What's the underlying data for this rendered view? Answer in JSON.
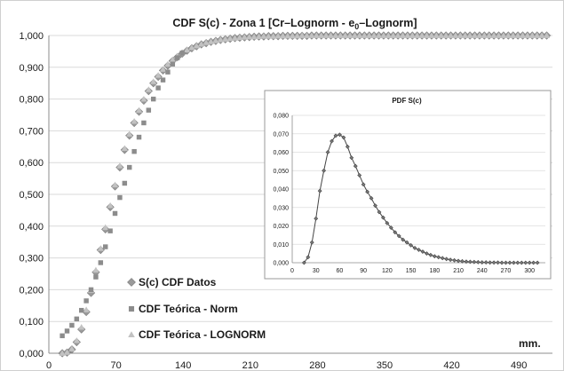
{
  "chart_data": [
    {
      "type": "scatter",
      "title": "CDF   S(c)   -   Zona 1    [Cr–Lognorm  -  e",
      "title_subscript": "0",
      "title_end": "–Lognorm]",
      "xlabel": "mm.",
      "ylabel": "",
      "xlim": [
        0,
        525
      ],
      "ylim": [
        0,
        1
      ],
      "x_ticks": [
        0,
        70,
        140,
        210,
        280,
        350,
        420,
        490
      ],
      "x_tick_labels": [
        "0",
        "70",
        "140",
        "210",
        "280",
        "350",
        "420",
        "490"
      ],
      "y_ticks": [
        0,
        0.1,
        0.2,
        0.3,
        0.4,
        0.5,
        0.6,
        0.7,
        0.8,
        0.9,
        1.0
      ],
      "y_tick_labels": [
        "0,000",
        "0,100",
        "0,200",
        "0,300",
        "0,400",
        "0,500",
        "0,600",
        "0,700",
        "0,800",
        "0,900",
        "1,000"
      ],
      "grid": true,
      "legend_position": "bottom-left",
      "series": [
        {
          "name": "S(c) CDF Datos",
          "marker": "diamond",
          "color": "#9a9a9a",
          "x": [
            14,
            19,
            24,
            29,
            34,
            39,
            44,
            49,
            54,
            59,
            64,
            69,
            74,
            79,
            84,
            89,
            94,
            99,
            104,
            109,
            114,
            119,
            124,
            129,
            134,
            139,
            144,
            149,
            154,
            159,
            164,
            169,
            174,
            179,
            184,
            189,
            194,
            199,
            204,
            209,
            214,
            219,
            224,
            229,
            234,
            239,
            244,
            249,
            254,
            259,
            264,
            269,
            274,
            279,
            284,
            289,
            294,
            299,
            304,
            309,
            314,
            319,
            324,
            329,
            334,
            339,
            344,
            349,
            354,
            359,
            364,
            369,
            374,
            379,
            384,
            389,
            394,
            399,
            404,
            409,
            414,
            419,
            424,
            429,
            434,
            439,
            444,
            449,
            454,
            459,
            464,
            469,
            474,
            479,
            484,
            489,
            494,
            499,
            504,
            509,
            514,
            519
          ],
          "y": [
            0.0,
            0.002,
            0.012,
            0.035,
            0.075,
            0.13,
            0.19,
            0.255,
            0.325,
            0.39,
            0.46,
            0.525,
            0.585,
            0.64,
            0.685,
            0.725,
            0.76,
            0.795,
            0.825,
            0.85,
            0.87,
            0.89,
            0.905,
            0.92,
            0.932,
            0.943,
            0.952,
            0.96,
            0.966,
            0.972,
            0.976,
            0.98,
            0.983,
            0.986,
            0.988,
            0.99,
            0.992,
            0.993,
            0.994,
            0.995,
            0.996,
            0.997,
            0.997,
            0.998,
            0.998,
            0.998,
            0.999,
            0.999,
            0.999,
            0.999,
            0.999,
            0.999,
            1.0,
            1.0,
            1.0,
            1.0,
            1.0,
            1.0,
            1.0,
            1.0,
            1.0,
            1.0,
            1.0,
            1.0,
            1.0,
            1.0,
            1.0,
            1.0,
            1.0,
            1.0,
            1.0,
            1.0,
            1.0,
            1.0,
            1.0,
            1.0,
            1.0,
            1.0,
            1.0,
            1.0,
            1.0,
            1.0,
            1.0,
            1.0,
            1.0,
            1.0,
            1.0,
            1.0,
            1.0,
            1.0,
            1.0,
            1.0,
            1.0,
            1.0,
            1.0,
            1.0,
            1.0,
            1.0,
            1.0,
            1.0,
            1.0,
            1.0
          ]
        },
        {
          "name": "CDF Teórica - Norm",
          "marker": "square",
          "color": "#8c8c8c",
          "x": [
            14,
            19,
            24,
            29,
            34,
            39,
            44,
            49,
            54,
            59,
            64,
            69,
            74,
            79,
            84,
            89,
            94,
            99,
            104,
            109,
            114,
            119,
            124,
            129,
            134,
            139
          ],
          "y": [
            0.055,
            0.07,
            0.088,
            0.108,
            0.135,
            0.165,
            0.2,
            0.24,
            0.285,
            0.335,
            0.385,
            0.44,
            0.49,
            0.535,
            0.585,
            0.635,
            0.68,
            0.725,
            0.765,
            0.8,
            0.835,
            0.86,
            0.885,
            0.91,
            0.93,
            0.945
          ]
        },
        {
          "name": "CDF Teórica - LOGNORM",
          "marker": "triangle",
          "color": "#c2c2c2",
          "x": [
            14,
            19,
            24,
            29,
            34,
            39,
            44,
            49,
            54,
            59,
            64,
            69,
            74,
            79,
            84,
            89,
            94,
            99,
            104,
            109,
            114,
            119,
            124,
            129,
            134,
            139,
            144,
            149,
            154,
            159,
            164,
            169,
            174,
            179,
            184,
            189,
            194,
            199,
            204,
            209,
            214,
            219,
            224,
            229,
            234,
            239,
            244,
            249,
            254,
            259,
            264,
            269,
            274,
            279,
            284,
            289,
            294,
            299,
            304,
            309,
            314,
            319,
            324,
            329,
            334,
            339,
            344,
            349,
            354,
            359,
            364,
            369,
            374,
            379,
            384,
            389,
            394,
            399,
            404,
            409,
            414,
            419,
            424,
            429,
            434,
            439,
            444,
            449,
            454,
            459,
            464,
            469,
            474,
            479,
            484,
            489,
            494,
            499,
            504,
            509,
            514,
            519
          ],
          "y": [
            0.0,
            0.003,
            0.014,
            0.04,
            0.082,
            0.137,
            0.198,
            0.262,
            0.33,
            0.396,
            0.465,
            0.53,
            0.59,
            0.645,
            0.69,
            0.73,
            0.765,
            0.8,
            0.83,
            0.855,
            0.875,
            0.894,
            0.91,
            0.924,
            0.936,
            0.946,
            0.955,
            0.962,
            0.968,
            0.973,
            0.978,
            0.981,
            0.984,
            0.987,
            0.989,
            0.991,
            0.992,
            0.994,
            0.995,
            0.996,
            0.996,
            0.997,
            0.998,
            0.998,
            0.998,
            0.999,
            0.999,
            0.999,
            0.999,
            0.999,
            1.0,
            1.0,
            1.0,
            1.0,
            1.0,
            1.0,
            1.0,
            1.0,
            1.0,
            1.0,
            1.0,
            1.0,
            1.0,
            1.0,
            1.0,
            1.0,
            1.0,
            1.0,
            1.0,
            1.0,
            1.0,
            1.0,
            1.0,
            1.0,
            1.0,
            1.0,
            1.0,
            1.0,
            1.0,
            1.0,
            1.0,
            1.0,
            1.0,
            1.0,
            1.0,
            1.0,
            1.0,
            1.0,
            1.0,
            1.0,
            1.0,
            1.0,
            1.0,
            1.0,
            1.0,
            1.0,
            1.0,
            1.0,
            1.0,
            1.0,
            1.0,
            1.0
          ]
        }
      ]
    },
    {
      "type": "line",
      "title": "PDF    S(c)",
      "xlabel": "",
      "ylabel": "",
      "xlim": [
        0,
        320
      ],
      "ylim": [
        0,
        0.08
      ],
      "x_ticks": [
        0,
        30,
        60,
        90,
        120,
        150,
        180,
        210,
        240,
        270,
        300
      ],
      "x_tick_labels": [
        "0",
        "30",
        "60",
        "90",
        "120",
        "150",
        "180",
        "210",
        "240",
        "270",
        "300"
      ],
      "y_ticks": [
        0,
        0.01,
        0.02,
        0.03,
        0.04,
        0.05,
        0.06,
        0.07,
        0.08
      ],
      "y_tick_labels": [
        "0,000",
        "0,010",
        "0,020",
        "0,030",
        "0,040",
        "0,050",
        "0,060",
        "0,070",
        "0,080"
      ],
      "grid": true,
      "series": [
        {
          "marker": "diamond",
          "color": "#444444",
          "x": [
            15,
            20,
            25,
            30,
            35,
            40,
            45,
            50,
            55,
            60,
            65,
            70,
            75,
            80,
            85,
            90,
            95,
            100,
            105,
            110,
            115,
            120,
            125,
            130,
            135,
            140,
            145,
            150,
            155,
            160,
            165,
            170,
            175,
            180,
            185,
            190,
            195,
            200,
            205,
            210,
            215,
            220,
            225,
            230,
            235,
            240,
            245,
            250,
            255,
            260,
            265,
            270,
            275,
            280,
            285,
            290,
            295,
            300,
            305,
            310
          ],
          "y": [
            0.0,
            0.003,
            0.011,
            0.024,
            0.039,
            0.05,
            0.06,
            0.066,
            0.069,
            0.0695,
            0.068,
            0.063,
            0.057,
            0.0525,
            0.0475,
            0.0425,
            0.0385,
            0.035,
            0.031,
            0.0275,
            0.0245,
            0.0215,
            0.019,
            0.0165,
            0.0145,
            0.0125,
            0.011,
            0.0095,
            0.008,
            0.007,
            0.006,
            0.005,
            0.0042,
            0.0035,
            0.003,
            0.0025,
            0.002,
            0.0016,
            0.0013,
            0.001,
            0.0008,
            0.0006,
            0.0005,
            0.0004,
            0.0003,
            0.0002,
            0.0002,
            0.0001,
            0.0001,
            0.0001,
            0.0,
            0.0,
            0.0,
            0.0,
            0.0,
            0.0,
            0.0,
            0.0,
            0.0,
            0.0
          ]
        }
      ]
    }
  ]
}
